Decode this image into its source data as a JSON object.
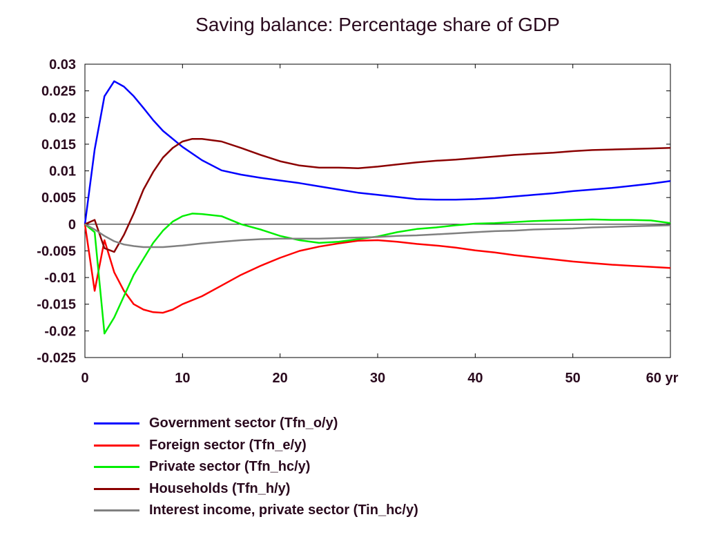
{
  "chart_data": {
    "type": "line",
    "title": "Saving balance: Percentage share of GDP",
    "xlabel": "",
    "ylabel": "",
    "xlim": [
      0,
      60
    ],
    "ylim": [
      -0.025,
      0.03
    ],
    "x_ticks": [
      0,
      10,
      20,
      30,
      40,
      50,
      60
    ],
    "x_tick_labels": [
      "0",
      "10",
      "20",
      "30",
      "40",
      "50",
      "60 yr"
    ],
    "y_ticks": [
      0.03,
      0.025,
      0.02,
      0.015,
      0.01,
      0.005,
      0,
      -0.005,
      -0.01,
      -0.015,
      -0.02,
      -0.025
    ],
    "y_tick_labels": [
      "0.03",
      "0.025",
      "0.02",
      "0.015",
      "0.01",
      "0.005",
      "0",
      "-0.005",
      "-0.01",
      "-0.015",
      "-0.02",
      "-0.025"
    ],
    "grid": false,
    "zero_line": true,
    "legend_position": "bottom",
    "series": [
      {
        "name": "Government sector (Tfn_o/y)",
        "color": "#0000ff",
        "x": [
          0,
          1,
          2,
          3,
          4,
          5,
          6,
          7,
          8,
          10,
          12,
          14,
          16,
          18,
          20,
          22,
          24,
          26,
          28,
          30,
          32,
          34,
          36,
          38,
          40,
          42,
          44,
          46,
          48,
          50,
          52,
          54,
          56,
          58,
          60
        ],
        "y": [
          0,
          0.014,
          0.024,
          0.0268,
          0.0258,
          0.024,
          0.0218,
          0.0195,
          0.0175,
          0.0145,
          0.012,
          0.0101,
          0.0093,
          0.0087,
          0.0082,
          0.0077,
          0.0071,
          0.0065,
          0.0059,
          0.0055,
          0.0051,
          0.0047,
          0.0046,
          0.0046,
          0.0047,
          0.0049,
          0.0052,
          0.0055,
          0.0058,
          0.0062,
          0.0065,
          0.0068,
          0.0072,
          0.0076,
          0.0081
        ]
      },
      {
        "name": "Foreign sector (Tfn_e/y)",
        "color": "#ff0000",
        "x": [
          0,
          1,
          2,
          3,
          4,
          5,
          6,
          7,
          8,
          9,
          10,
          12,
          14,
          16,
          18,
          20,
          22,
          24,
          26,
          28,
          30,
          32,
          34,
          36,
          38,
          40,
          42,
          44,
          46,
          48,
          50,
          52,
          54,
          56,
          58,
          60
        ],
        "y": [
          0,
          -0.0125,
          -0.003,
          -0.009,
          -0.0125,
          -0.015,
          -0.016,
          -0.0165,
          -0.0166,
          -0.016,
          -0.015,
          -0.0135,
          -0.0115,
          -0.0095,
          -0.0078,
          -0.0063,
          -0.005,
          -0.0042,
          -0.0036,
          -0.0031,
          -0.003,
          -0.0033,
          -0.0037,
          -0.004,
          -0.0044,
          -0.0049,
          -0.0053,
          -0.0058,
          -0.0062,
          -0.0066,
          -0.007,
          -0.0073,
          -0.0076,
          -0.0078,
          -0.008,
          -0.0082
        ]
      },
      {
        "name": "Private sector (Tfn_hc/y)",
        "color": "#00ee00",
        "x": [
          0,
          1,
          2,
          3,
          4,
          5,
          6,
          7,
          8,
          9,
          10,
          11,
          12,
          14,
          16,
          18,
          20,
          22,
          24,
          26,
          28,
          30,
          32,
          34,
          36,
          38,
          40,
          42,
          44,
          46,
          48,
          50,
          52,
          54,
          56,
          58,
          60
        ],
        "y": [
          0,
          -0.0015,
          -0.0205,
          -0.0175,
          -0.0135,
          -0.0095,
          -0.0065,
          -0.0035,
          -0.0012,
          0.0005,
          0.0015,
          0.002,
          0.0019,
          0.0015,
          0.0,
          -0.001,
          -0.0022,
          -0.003,
          -0.0035,
          -0.0033,
          -0.0028,
          -0.0023,
          -0.0015,
          -0.0009,
          -0.0006,
          -0.0002,
          0.0001,
          0.0002,
          0.0004,
          0.0006,
          0.0007,
          0.0008,
          0.0009,
          0.0008,
          0.0008,
          0.0007,
          0.0002
        ]
      },
      {
        "name": "Households (Tfn_h/y)",
        "color": "#8b0000",
        "x": [
          0,
          1,
          2,
          3,
          4,
          5,
          6,
          7,
          8,
          9,
          10,
          11,
          12,
          14,
          16,
          18,
          20,
          22,
          24,
          26,
          28,
          30,
          32,
          34,
          36,
          38,
          40,
          42,
          44,
          46,
          48,
          50,
          52,
          54,
          56,
          58,
          60
        ],
        "y": [
          0,
          0.0008,
          -0.0045,
          -0.0052,
          -0.002,
          0.002,
          0.0065,
          0.0098,
          0.0125,
          0.0143,
          0.0155,
          0.016,
          0.016,
          0.0155,
          0.0143,
          0.013,
          0.0118,
          0.011,
          0.0106,
          0.0106,
          0.0105,
          0.0108,
          0.0112,
          0.0116,
          0.0119,
          0.0121,
          0.0124,
          0.0127,
          0.013,
          0.0132,
          0.0134,
          0.0137,
          0.0139,
          0.014,
          0.0141,
          0.0142,
          0.0143
        ]
      },
      {
        "name": "Interest income, private sector (Tin_hc/y)",
        "color": "#808080",
        "x": [
          0,
          1,
          2,
          3,
          4,
          5,
          6,
          7,
          8,
          10,
          12,
          14,
          16,
          18,
          20,
          22,
          24,
          26,
          28,
          30,
          32,
          34,
          36,
          38,
          40,
          42,
          44,
          46,
          48,
          50,
          52,
          54,
          56,
          58,
          60
        ],
        "y": [
          0,
          -0.001,
          -0.0022,
          -0.0032,
          -0.0038,
          -0.0041,
          -0.0043,
          -0.0043,
          -0.0043,
          -0.004,
          -0.0036,
          -0.0033,
          -0.003,
          -0.0028,
          -0.0027,
          -0.0027,
          -0.0027,
          -0.0026,
          -0.0025,
          -0.0024,
          -0.0022,
          -0.0021,
          -0.0019,
          -0.0017,
          -0.0015,
          -0.0013,
          -0.0012,
          -0.001,
          -0.0009,
          -0.0008,
          -0.0006,
          -0.0005,
          -0.0004,
          -0.0003,
          -0.0002
        ]
      }
    ]
  }
}
